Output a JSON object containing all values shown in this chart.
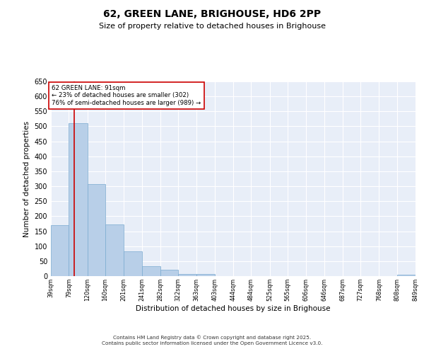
{
  "title": "62, GREEN LANE, BRIGHOUSE, HD6 2PP",
  "subtitle": "Size of property relative to detached houses in Brighouse",
  "xlabel": "Distribution of detached houses by size in Brighouse",
  "ylabel": "Number of detached properties",
  "bar_color": "#b8cfe8",
  "bar_edge_color": "#7aaad0",
  "background_color": "#e8eef8",
  "grid_color": "#ffffff",
  "red_line_x": 91,
  "annotation_text": "62 GREEN LANE: 91sqm\n← 23% of detached houses are smaller (302)\n76% of semi-detached houses are larger (989) →",
  "annotation_box_color": "#ffffff",
  "annotation_box_edge_color": "#cc0000",
  "bins": [
    39,
    79,
    120,
    160,
    201,
    241,
    282,
    322,
    363,
    403,
    444,
    484,
    525,
    565,
    606,
    646,
    687,
    727,
    768,
    808,
    849
  ],
  "values": [
    170,
    510,
    307,
    173,
    82,
    33,
    22,
    7,
    7,
    0,
    0,
    0,
    0,
    0,
    0,
    0,
    0,
    0,
    0,
    5
  ],
  "ylim": [
    0,
    650
  ],
  "yticks": [
    0,
    50,
    100,
    150,
    200,
    250,
    300,
    350,
    400,
    450,
    500,
    550,
    600,
    650
  ],
  "footer_line1": "Contains HM Land Registry data © Crown copyright and database right 2025.",
  "footer_line2": "Contains public sector information licensed under the Open Government Licence v3.0."
}
